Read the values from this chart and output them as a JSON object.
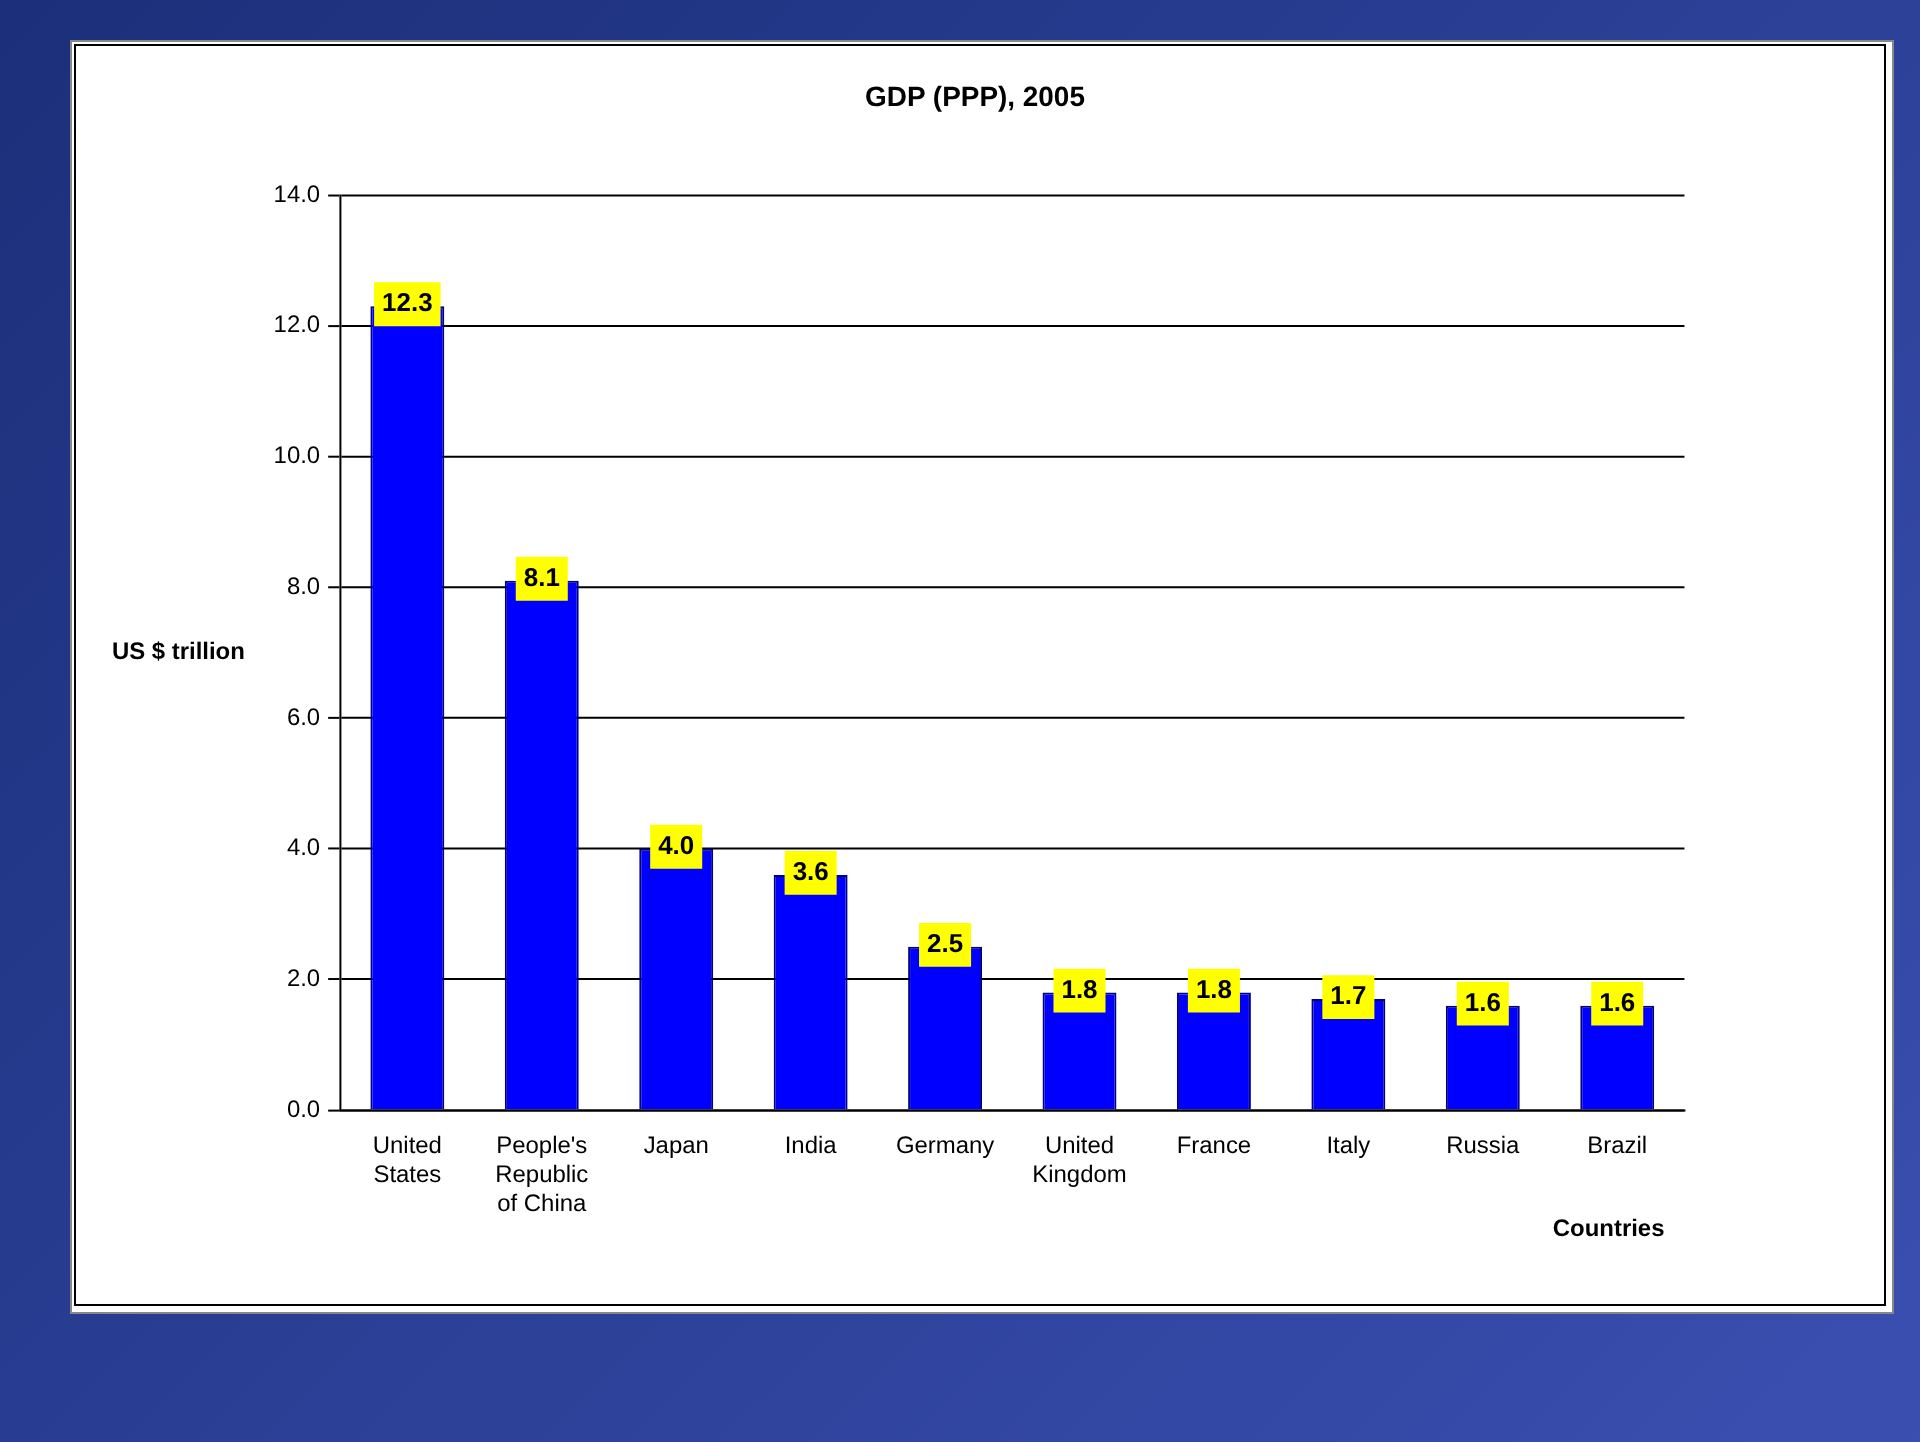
{
  "chart_data": {
    "type": "bar",
    "title": "GDP (PPP), 2005",
    "xlabel": "Countries",
    "ylabel": "US $ trillion",
    "categories": [
      "United States",
      "People's Republic of China",
      "Japan",
      "India",
      "Germany",
      "United Kingdom",
      "France",
      "Italy",
      "Russia",
      "Brazil"
    ],
    "values": [
      12.3,
      8.1,
      4.0,
      3.6,
      2.5,
      1.8,
      1.8,
      1.7,
      1.6,
      1.6
    ],
    "color": "#0000ff",
    "ylim": [
      0,
      14
    ],
    "yticks": [
      {
        "value": 0,
        "label": "0.0"
      },
      {
        "value": 2,
        "label": "2.0"
      },
      {
        "value": 4,
        "label": "4.0"
      },
      {
        "value": 6,
        "label": "6.0"
      },
      {
        "value": 8,
        "label": "8.0"
      },
      {
        "value": 10,
        "label": "10.0"
      },
      {
        "value": 12,
        "label": "12.0"
      },
      {
        "value": 14,
        "label": "14.0"
      }
    ],
    "value_labels": [
      "12.3",
      "8.1",
      "4.0",
      "3.6",
      "2.5",
      "1.8",
      "1.8",
      "1.7",
      "1.6",
      "1.6"
    ],
    "grid": "y",
    "legend": false
  }
}
